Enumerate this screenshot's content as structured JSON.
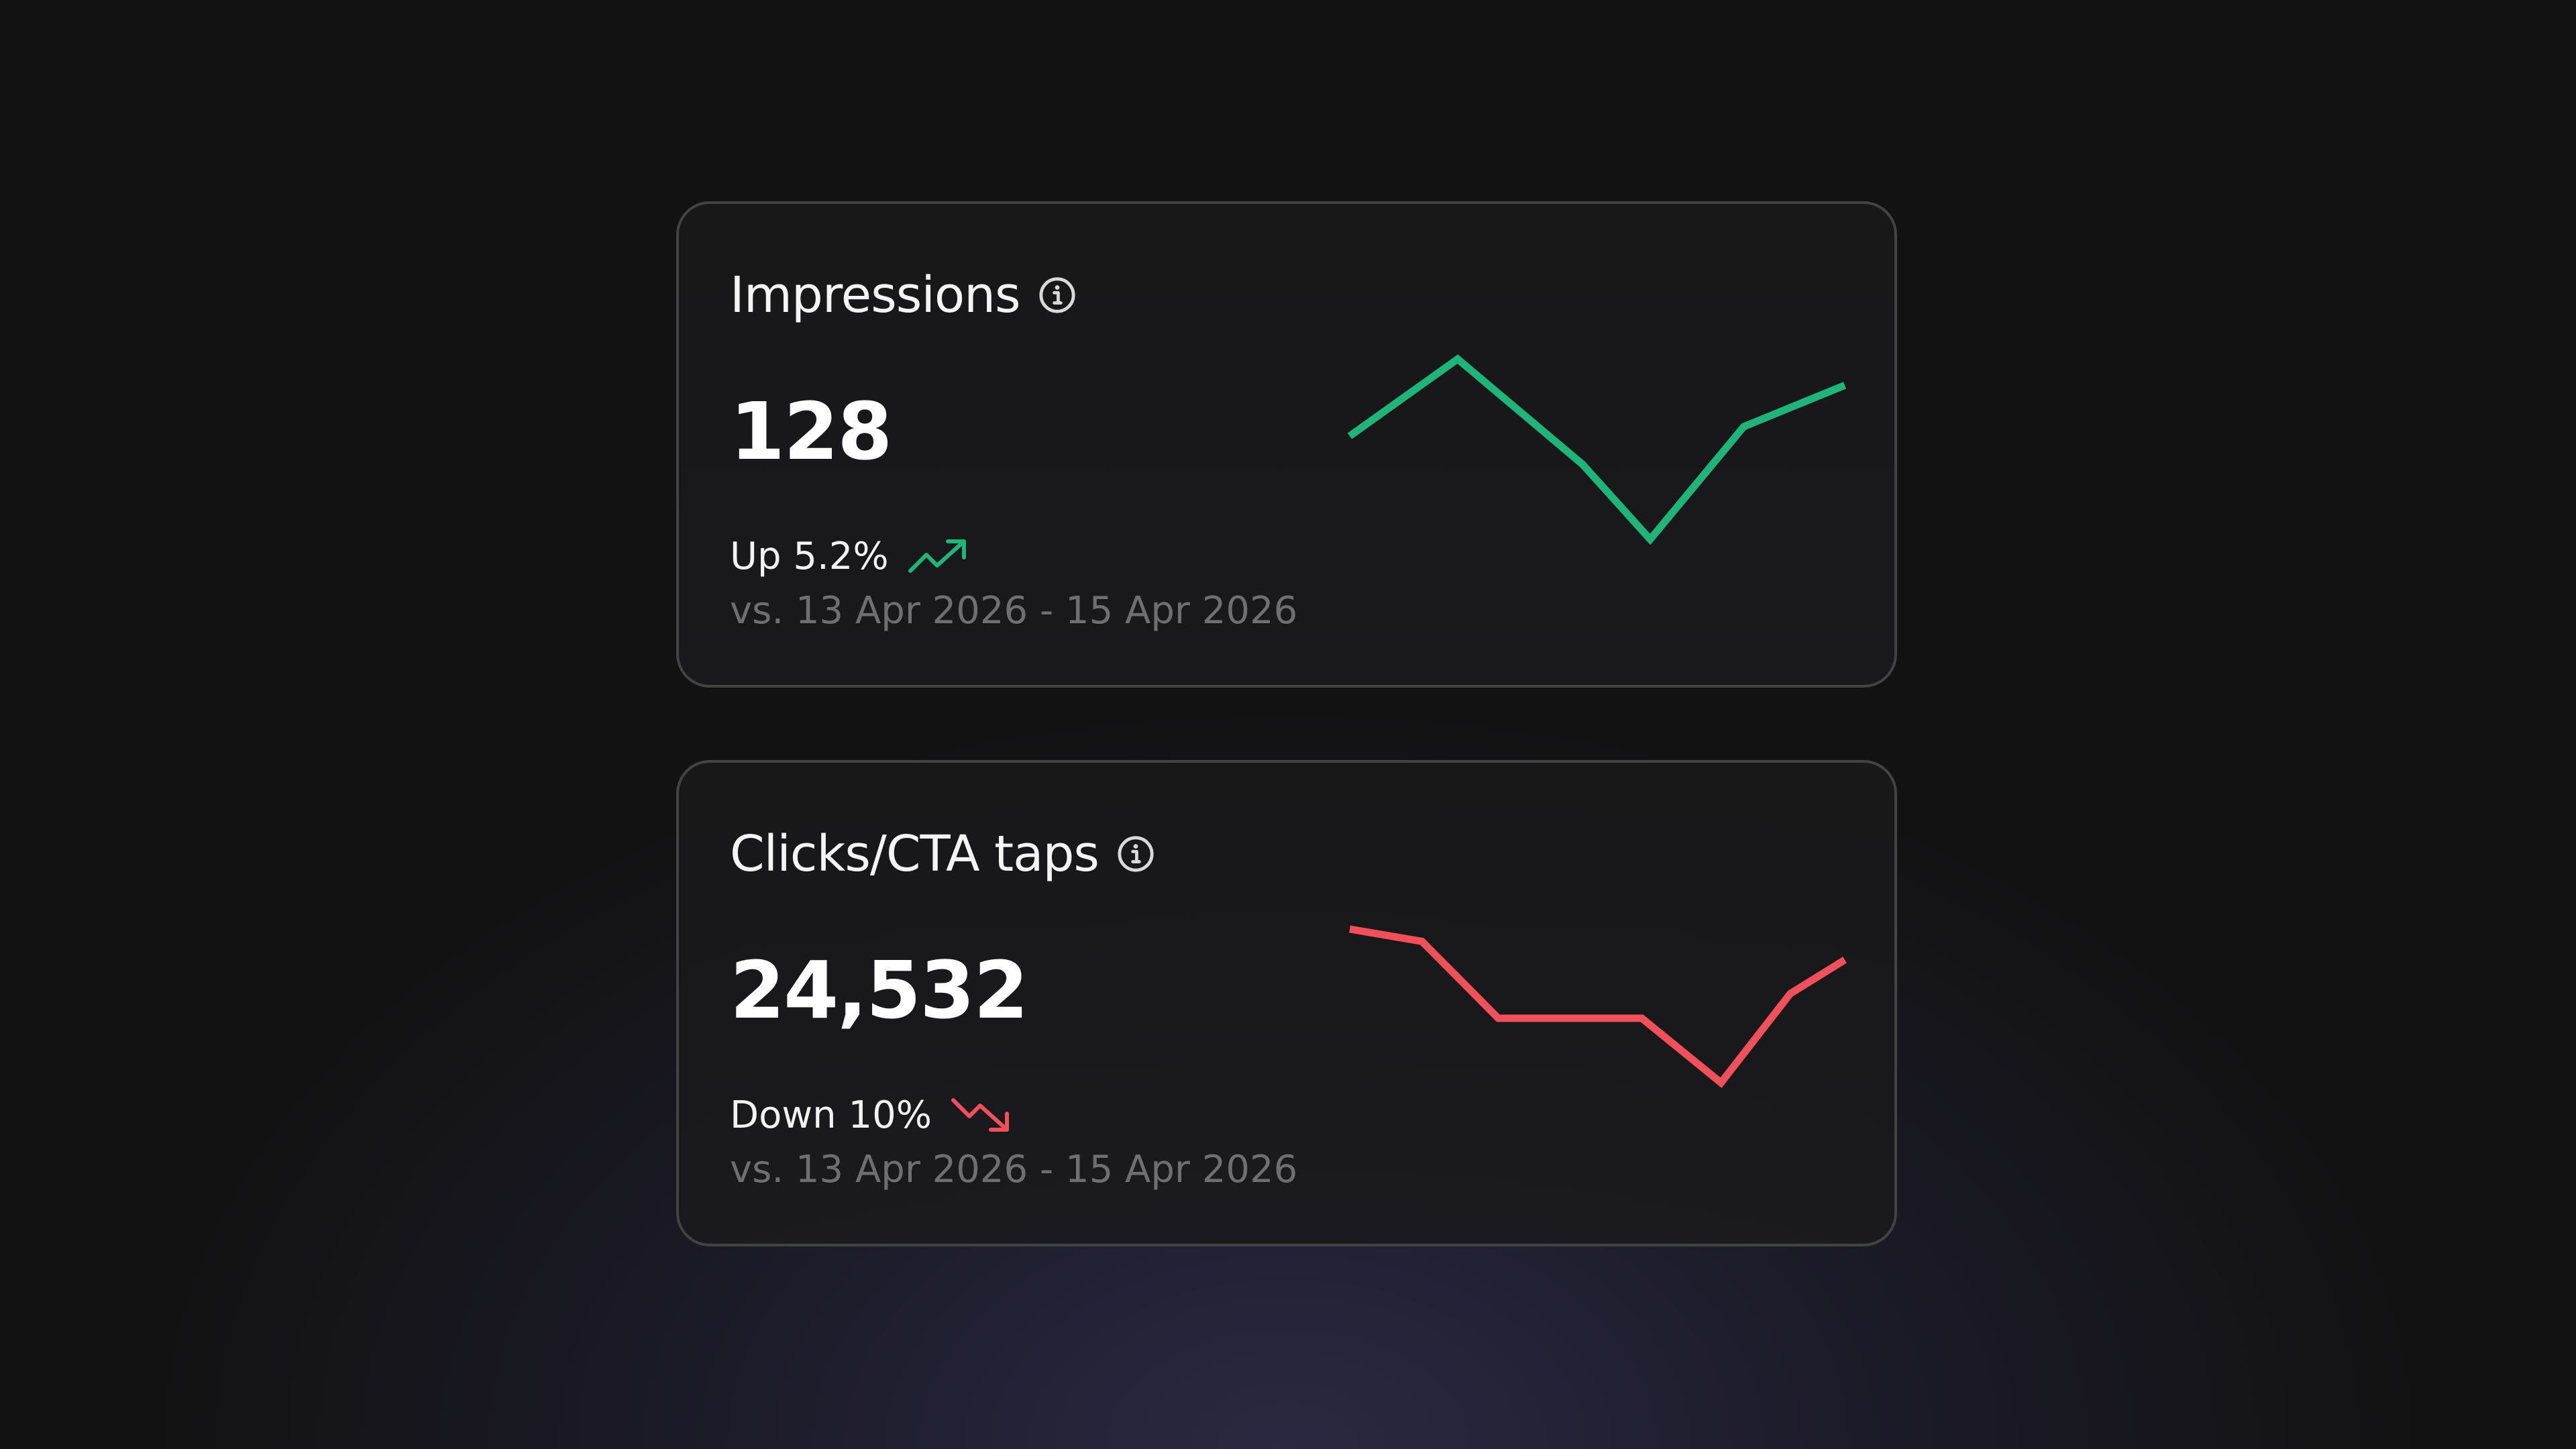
{
  "cards": [
    {
      "title": "Impressions",
      "value": "128",
      "change": "Up 5.2%",
      "direction": "up",
      "color": "#1fb57a",
      "comparison": "vs. 13 Apr 2026 - 15 Apr 2026",
      "sparkline": [
        0.55,
        0.96,
        0.4,
        0.0,
        0.6,
        0.82
      ]
    },
    {
      "title": "Clicks/CTA taps",
      "value": "24,532",
      "change": "Down 10%",
      "direction": "down",
      "color": "#f0505a",
      "comparison": "vs. 13 Apr 2026 - 15 Apr 2026",
      "sparkline": [
        1.0,
        0.92,
        0.42,
        0.42,
        0.42,
        0.0,
        0.58,
        0.8
      ]
    }
  ],
  "icons": {
    "info": "info-icon",
    "trend_up": "trend-up-icon",
    "trend_down": "trend-down-icon"
  }
}
